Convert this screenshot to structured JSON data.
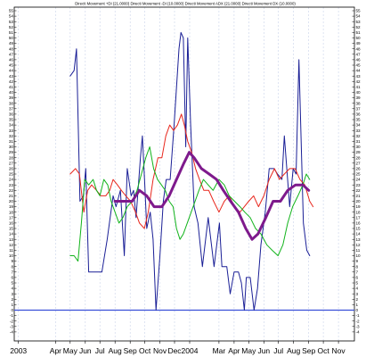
{
  "chart_data": {
    "type": "line",
    "title": "Directi Movement +DI (21.0000) Directi Movement -DI (10.0000) Directi Movement ADX (21.0000) Directi Movement DX (10.0000)",
    "ylim": [
      -5,
      55
    ],
    "yticks": [
      -4,
      -3,
      -2,
      -1,
      0,
      1,
      2,
      3,
      4,
      5,
      6,
      7,
      8,
      9,
      10,
      11,
      12,
      13,
      14,
      15,
      16,
      17,
      18,
      19,
      20,
      21,
      22,
      23,
      24,
      25,
      26,
      27,
      28,
      29,
      30,
      31,
      32,
      33,
      34,
      35,
      36,
      37,
      38,
      39,
      40,
      41,
      42,
      43,
      44,
      45,
      46,
      47,
      48,
      49,
      50,
      51,
      52,
      53,
      54,
      55
    ],
    "xlim": [
      "2003-01-10",
      "2004-11-30"
    ],
    "x_labels": [
      {
        "label": "2003",
        "date": "2003-01-15"
      },
      {
        "label": "Apr",
        "date": "2003-04-01"
      },
      {
        "label": "May",
        "date": "2003-05-01"
      },
      {
        "label": "Jun",
        "date": "2003-06-01"
      },
      {
        "label": "Jul",
        "date": "2003-07-01"
      },
      {
        "label": "Aug",
        "date": "2003-08-01"
      },
      {
        "label": "Sep",
        "date": "2003-09-01"
      },
      {
        "label": "Oct",
        "date": "2003-10-01"
      },
      {
        "label": "Nov",
        "date": "2003-11-01"
      },
      {
        "label": "Dec",
        "date": "2003-12-01"
      },
      {
        "label": "2004",
        "date": "2004-01-01"
      },
      {
        "label": "Mar",
        "date": "2004-03-01"
      },
      {
        "label": "Apr",
        "date": "2004-04-01"
      },
      {
        "label": "May",
        "date": "2004-05-01"
      },
      {
        "label": "Jun",
        "date": "2004-06-01"
      },
      {
        "label": "Jul",
        "date": "2004-07-01"
      },
      {
        "label": "Aug",
        "date": "2004-08-01"
      },
      {
        "label": "Sep",
        "date": "2004-09-01"
      },
      {
        "label": "Oct",
        "date": "2004-10-01"
      },
      {
        "label": "Nov",
        "date": "2004-11-01"
      }
    ],
    "grid": true,
    "grid_color": "#c9d3ea",
    "reference_line": {
      "y": 0,
      "color": "#3a4fd8"
    },
    "series": [
      {
        "color": "#1a1f96",
        "width": 1,
        "points": [
          [
            "2003-05-01",
            43
          ],
          [
            "2003-05-09",
            44
          ],
          [
            "2003-05-14",
            48
          ],
          [
            "2003-05-21",
            20
          ],
          [
            "2003-05-28",
            21
          ],
          [
            "2003-06-02",
            26
          ],
          [
            "2003-06-08",
            7
          ],
          [
            "2003-06-25",
            7
          ],
          [
            "2003-07-05",
            7
          ],
          [
            "2003-07-16",
            13
          ],
          [
            "2003-07-28",
            21
          ],
          [
            "2003-08-03",
            19
          ],
          [
            "2003-08-12",
            22
          ],
          [
            "2003-08-20",
            10
          ],
          [
            "2003-08-26",
            26
          ],
          [
            "2003-09-03",
            21
          ],
          [
            "2003-09-08",
            22
          ],
          [
            "2003-09-13",
            17
          ],
          [
            "2003-09-22",
            28
          ],
          [
            "2003-09-26",
            32
          ],
          [
            "2003-10-01",
            23
          ],
          [
            "2003-10-05",
            15
          ],
          [
            "2003-10-12",
            18
          ],
          [
            "2003-10-18",
            13
          ],
          [
            "2003-10-24",
            0
          ],
          [
            "2003-11-01",
            10
          ],
          [
            "2003-11-08",
            20
          ],
          [
            "2003-11-14",
            24
          ],
          [
            "2003-11-22",
            24
          ],
          [
            "2003-11-30",
            34
          ],
          [
            "2003-12-10",
            48
          ],
          [
            "2003-12-14",
            51
          ],
          [
            "2003-12-19",
            50
          ],
          [
            "2003-12-24",
            30
          ],
          [
            "2003-12-28",
            50
          ],
          [
            "2004-01-03",
            34
          ],
          [
            "2004-01-10",
            19
          ],
          [
            "2004-01-18",
            16
          ],
          [
            "2004-01-27",
            8
          ],
          [
            "2004-02-08",
            17
          ],
          [
            "2004-02-20",
            8
          ],
          [
            "2004-03-02",
            16
          ],
          [
            "2004-03-07",
            8
          ],
          [
            "2004-03-17",
            8
          ],
          [
            "2004-03-24",
            3
          ],
          [
            "2004-04-01",
            7
          ],
          [
            "2004-04-10",
            7
          ],
          [
            "2004-04-16",
            5
          ],
          [
            "2004-04-22",
            0
          ],
          [
            "2004-04-26",
            6
          ],
          [
            "2004-05-04",
            6
          ],
          [
            "2004-05-12",
            0
          ],
          [
            "2004-05-19",
            4
          ],
          [
            "2004-05-26",
            12
          ],
          [
            "2004-06-04",
            18
          ],
          [
            "2004-06-12",
            26
          ],
          [
            "2004-06-22",
            26
          ],
          [
            "2004-06-29",
            25
          ],
          [
            "2004-07-08",
            24
          ],
          [
            "2004-07-13",
            32
          ],
          [
            "2004-07-24",
            19
          ],
          [
            "2004-07-31",
            26
          ],
          [
            "2004-08-06",
            25
          ],
          [
            "2004-08-12",
            46
          ],
          [
            "2004-08-21",
            16
          ],
          [
            "2004-08-28",
            11
          ],
          [
            "2004-09-03",
            10
          ]
        ]
      },
      {
        "color": "#e8261c",
        "width": 1,
        "points": [
          [
            "2003-05-01",
            25
          ],
          [
            "2003-05-12",
            26
          ],
          [
            "2003-05-20",
            25
          ],
          [
            "2003-05-29",
            18
          ],
          [
            "2003-06-06",
            22
          ],
          [
            "2003-06-14",
            23
          ],
          [
            "2003-06-24",
            22
          ],
          [
            "2003-07-03",
            21
          ],
          [
            "2003-07-13",
            21
          ],
          [
            "2003-07-21",
            22
          ],
          [
            "2003-07-28",
            24
          ],
          [
            "2003-08-06",
            23
          ],
          [
            "2003-08-14",
            22
          ],
          [
            "2003-08-23",
            21
          ],
          [
            "2003-09-02",
            20
          ],
          [
            "2003-09-12",
            18
          ],
          [
            "2003-09-20",
            16
          ],
          [
            "2003-09-30",
            15
          ],
          [
            "2003-10-08",
            18
          ],
          [
            "2003-10-18",
            24
          ],
          [
            "2003-10-28",
            28
          ],
          [
            "2003-11-05",
            28
          ],
          [
            "2003-11-13",
            32
          ],
          [
            "2003-11-21",
            34
          ],
          [
            "2003-11-29",
            33
          ],
          [
            "2003-12-07",
            34
          ],
          [
            "2003-12-15",
            36
          ],
          [
            "2003-12-21",
            34
          ],
          [
            "2003-12-28",
            31
          ],
          [
            "2004-01-05",
            29
          ],
          [
            "2004-01-13",
            26
          ],
          [
            "2004-01-21",
            24
          ],
          [
            "2004-01-30",
            22
          ],
          [
            "2004-02-09",
            22
          ],
          [
            "2004-02-19",
            20
          ],
          [
            "2004-03-01",
            18
          ],
          [
            "2004-03-12",
            20
          ],
          [
            "2004-03-22",
            21
          ],
          [
            "2004-04-02",
            19
          ],
          [
            "2004-04-13",
            18
          ],
          [
            "2004-04-22",
            19
          ],
          [
            "2004-05-01",
            20
          ],
          [
            "2004-05-11",
            21
          ],
          [
            "2004-05-21",
            19
          ],
          [
            "2004-06-01",
            21
          ],
          [
            "2004-06-12",
            24
          ],
          [
            "2004-06-23",
            26
          ],
          [
            "2004-07-03",
            24
          ],
          [
            "2004-07-13",
            25
          ],
          [
            "2004-07-24",
            26
          ],
          [
            "2004-08-04",
            26
          ],
          [
            "2004-08-14",
            24
          ],
          [
            "2004-08-24",
            23
          ],
          [
            "2004-09-03",
            20
          ],
          [
            "2004-09-10",
            19
          ]
        ]
      },
      {
        "color": "#10b31a",
        "width": 1,
        "points": [
          [
            "2003-05-01",
            10
          ],
          [
            "2003-05-09",
            10
          ],
          [
            "2003-05-17",
            9
          ],
          [
            "2003-05-24",
            16
          ],
          [
            "2003-05-31",
            24
          ],
          [
            "2003-06-08",
            23
          ],
          [
            "2003-06-17",
            24
          ],
          [
            "2003-06-24",
            22
          ],
          [
            "2003-07-01",
            21
          ],
          [
            "2003-07-09",
            24
          ],
          [
            "2003-07-17",
            23
          ],
          [
            "2003-07-24",
            20
          ],
          [
            "2003-08-01",
            18
          ],
          [
            "2003-08-09",
            16
          ],
          [
            "2003-08-17",
            17
          ],
          [
            "2003-08-26",
            19
          ],
          [
            "2003-09-05",
            20
          ],
          [
            "2003-09-15",
            22
          ],
          [
            "2003-09-24",
            25
          ],
          [
            "2003-10-03",
            28
          ],
          [
            "2003-10-11",
            30
          ],
          [
            "2003-10-19",
            26
          ],
          [
            "2003-10-27",
            24
          ],
          [
            "2003-11-04",
            23
          ],
          [
            "2003-11-12",
            22
          ],
          [
            "2003-11-20",
            20
          ],
          [
            "2003-11-28",
            19
          ],
          [
            "2003-12-05",
            15
          ],
          [
            "2003-12-12",
            13
          ],
          [
            "2003-12-19",
            14
          ],
          [
            "2003-12-27",
            16
          ],
          [
            "2004-01-04",
            18
          ],
          [
            "2004-01-12",
            20
          ],
          [
            "2004-01-20",
            22
          ],
          [
            "2004-01-29",
            24
          ],
          [
            "2004-02-08",
            23
          ],
          [
            "2004-02-18",
            22
          ],
          [
            "2004-03-01",
            24
          ],
          [
            "2004-03-12",
            23
          ],
          [
            "2004-03-22",
            21
          ],
          [
            "2004-04-02",
            20
          ],
          [
            "2004-04-13",
            19
          ],
          [
            "2004-04-23",
            18
          ],
          [
            "2004-05-04",
            17
          ],
          [
            "2004-05-15",
            15
          ],
          [
            "2004-05-26",
            14
          ],
          [
            "2004-06-07",
            12
          ],
          [
            "2004-06-18",
            11
          ],
          [
            "2004-06-30",
            10
          ],
          [
            "2004-07-10",
            12
          ],
          [
            "2004-07-20",
            16
          ],
          [
            "2004-07-30",
            19
          ],
          [
            "2004-08-10",
            21
          ],
          [
            "2004-08-20",
            23
          ],
          [
            "2004-08-27",
            25
          ],
          [
            "2004-09-03",
            24
          ]
        ]
      },
      {
        "color": "#7e1a8c",
        "width": 3,
        "points": [
          [
            "2003-08-01",
            20
          ],
          [
            "2003-08-20",
            20
          ],
          [
            "2003-09-05",
            20
          ],
          [
            "2003-09-20",
            22
          ],
          [
            "2003-10-05",
            21
          ],
          [
            "2003-10-20",
            19
          ],
          [
            "2003-11-05",
            19
          ],
          [
            "2003-11-20",
            21
          ],
          [
            "2003-12-05",
            24
          ],
          [
            "2003-12-20",
            27
          ],
          [
            "2003-12-31",
            29
          ],
          [
            "2004-01-10",
            28
          ],
          [
            "2004-01-25",
            26
          ],
          [
            "2004-02-10",
            25
          ],
          [
            "2004-02-25",
            24
          ],
          [
            "2004-03-10",
            22
          ],
          [
            "2004-03-25",
            20
          ],
          [
            "2004-04-10",
            18
          ],
          [
            "2004-04-25",
            15
          ],
          [
            "2004-05-08",
            13
          ],
          [
            "2004-05-20",
            14
          ],
          [
            "2004-06-05",
            17
          ],
          [
            "2004-06-20",
            20
          ],
          [
            "2004-07-05",
            20
          ],
          [
            "2004-07-20",
            22
          ],
          [
            "2004-08-05",
            23
          ],
          [
            "2004-08-20",
            23
          ],
          [
            "2004-09-01",
            22
          ]
        ]
      }
    ]
  }
}
